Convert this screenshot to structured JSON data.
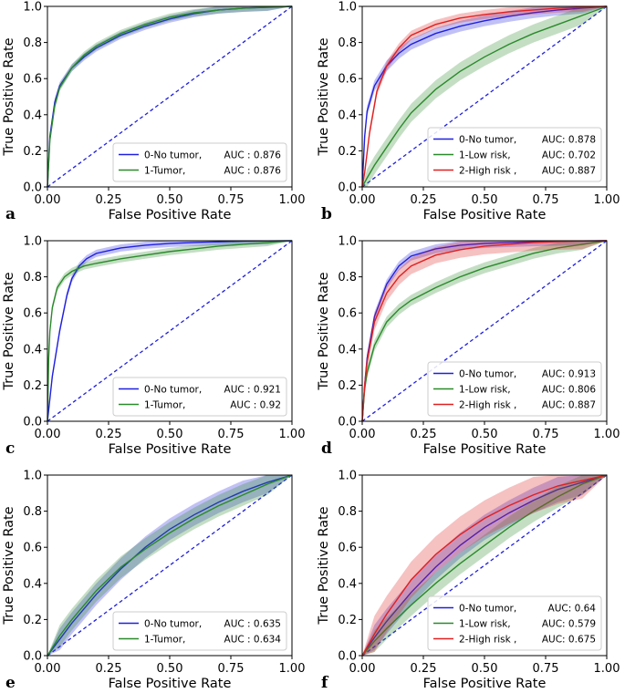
{
  "colors": {
    "blue": "#1f1fe0",
    "green": "#2a8a2a",
    "red": "#e02020",
    "diag": "#1f1fe0"
  },
  "chart_data": [
    {
      "type": "line",
      "panel": "a",
      "xlabel": "False Positive Rate",
      "ylabel": "True Positive Rate",
      "xlim": [
        0,
        1
      ],
      "ylim": [
        0,
        1
      ],
      "xticks": [
        "0.00",
        "0.25",
        "0.50",
        "0.75",
        "1.00"
      ],
      "yticks": [
        "0.0",
        "0.2",
        "0.4",
        "0.6",
        "0.8",
        "1.0"
      ],
      "legend_position": "lower-right",
      "series": [
        {
          "name": "0-No tumor,",
          "auc_label": "AUC : 0.876",
          "color": "blue",
          "x": [
            0,
            0.01,
            0.03,
            0.05,
            0.1,
            0.15,
            0.2,
            0.3,
            0.4,
            0.5,
            0.6,
            0.7,
            0.8,
            0.9,
            1.0
          ],
          "y": [
            0,
            0.28,
            0.47,
            0.56,
            0.66,
            0.72,
            0.77,
            0.84,
            0.89,
            0.93,
            0.96,
            0.98,
            0.99,
            0.995,
            1.0
          ],
          "band": 0.02
        },
        {
          "name": "1-Tumor,",
          "auc_label": "AUC : 0.876",
          "color": "green",
          "x": [
            0,
            0.01,
            0.03,
            0.05,
            0.1,
            0.15,
            0.2,
            0.3,
            0.4,
            0.5,
            0.6,
            0.7,
            0.8,
            0.9,
            1.0
          ],
          "y": [
            0,
            0.26,
            0.45,
            0.55,
            0.66,
            0.73,
            0.78,
            0.85,
            0.9,
            0.94,
            0.965,
            0.98,
            0.99,
            0.996,
            1.0
          ],
          "band": 0.02
        }
      ]
    },
    {
      "type": "line",
      "panel": "b",
      "xlabel": "False Positive Rate",
      "ylabel": "True Positive Rate",
      "xlim": [
        0,
        1
      ],
      "ylim": [
        0,
        1
      ],
      "xticks": [
        "0.00",
        "0.25",
        "0.50",
        "0.75",
        "1.00"
      ],
      "yticks": [
        "0.0",
        "0.2",
        "0.4",
        "0.6",
        "0.8",
        "1.0"
      ],
      "legend_position": "lower-right",
      "series": [
        {
          "name": "0-No tumor,",
          "auc_label": "AUC: 0.878",
          "color": "blue",
          "x": [
            0,
            0.01,
            0.02,
            0.05,
            0.1,
            0.15,
            0.2,
            0.3,
            0.4,
            0.5,
            0.6,
            0.7,
            0.8,
            0.9,
            1.0
          ],
          "y": [
            0,
            0.28,
            0.42,
            0.56,
            0.67,
            0.74,
            0.79,
            0.85,
            0.89,
            0.92,
            0.945,
            0.965,
            0.98,
            0.99,
            1.0
          ],
          "band": 0.03
        },
        {
          "name": "1-Low risk,",
          "auc_label": "AUC: 0.702",
          "color": "green",
          "x": [
            0,
            0.02,
            0.05,
            0.1,
            0.15,
            0.2,
            0.3,
            0.4,
            0.5,
            0.6,
            0.7,
            0.8,
            0.9,
            1.0
          ],
          "y": [
            0,
            0.05,
            0.12,
            0.22,
            0.32,
            0.41,
            0.54,
            0.64,
            0.72,
            0.79,
            0.85,
            0.9,
            0.95,
            1.0
          ],
          "band": 0.05
        },
        {
          "name": "2-High risk ,",
          "auc_label": "AUC: 0.887",
          "color": "red",
          "x": [
            0,
            0.01,
            0.03,
            0.06,
            0.1,
            0.15,
            0.2,
            0.3,
            0.4,
            0.5,
            0.6,
            0.7,
            0.8,
            0.9,
            1.0
          ],
          "y": [
            0,
            0.08,
            0.3,
            0.53,
            0.67,
            0.77,
            0.84,
            0.9,
            0.935,
            0.955,
            0.97,
            0.98,
            0.99,
            0.995,
            1.0
          ],
          "band": 0.025
        }
      ]
    },
    {
      "type": "line",
      "panel": "c",
      "xlabel": "False Positive Rate",
      "ylabel": "True Positive Rate",
      "xlim": [
        0,
        1
      ],
      "ylim": [
        0,
        1
      ],
      "xticks": [
        "0.00",
        "0.25",
        "0.50",
        "0.75",
        "1.00"
      ],
      "yticks": [
        "0.0",
        "0.2",
        "0.4",
        "0.6",
        "0.8",
        "1.0"
      ],
      "legend_position": "lower-right",
      "series": [
        {
          "name": "0-No tumor,",
          "auc_label": "AUC : 0.921",
          "color": "blue",
          "x": [
            0,
            0.02,
            0.05,
            0.08,
            0.1,
            0.13,
            0.16,
            0.2,
            0.3,
            0.4,
            0.5,
            0.6,
            0.7,
            0.8,
            0.9,
            1.0
          ],
          "y": [
            0,
            0.25,
            0.5,
            0.7,
            0.79,
            0.86,
            0.9,
            0.93,
            0.96,
            0.975,
            0.985,
            0.99,
            0.994,
            0.997,
            0.999,
            1.0
          ],
          "band": 0.02
        },
        {
          "name": "1-Tumor,",
          "auc_label": "AUC : 0.92",
          "color": "green",
          "x": [
            0,
            0.005,
            0.01,
            0.02,
            0.04,
            0.07,
            0.1,
            0.15,
            0.2,
            0.3,
            0.4,
            0.5,
            0.6,
            0.7,
            0.8,
            0.9,
            1.0
          ],
          "y": [
            0,
            0.35,
            0.5,
            0.63,
            0.74,
            0.8,
            0.83,
            0.86,
            0.875,
            0.9,
            0.92,
            0.94,
            0.955,
            0.97,
            0.98,
            0.99,
            1.0
          ],
          "band": 0.02
        }
      ]
    },
    {
      "type": "line",
      "panel": "d",
      "xlabel": "False Positive Rate",
      "ylabel": "True Positive Rate",
      "xlim": [
        0,
        1
      ],
      "ylim": [
        0,
        1
      ],
      "xticks": [
        "0.00",
        "0.25",
        "0.50",
        "0.75",
        "1.00"
      ],
      "yticks": [
        "0.0",
        "0.2",
        "0.4",
        "0.6",
        "0.8",
        "1.0"
      ],
      "legend_position": "lower-right",
      "series": [
        {
          "name": "0-No tumor,",
          "auc_label": "AUC: 0.913",
          "color": "blue",
          "x": [
            0,
            0.01,
            0.02,
            0.05,
            0.1,
            0.15,
            0.2,
            0.3,
            0.4,
            0.5,
            0.6,
            0.7,
            0.8,
            0.9,
            1.0
          ],
          "y": [
            0,
            0.2,
            0.35,
            0.58,
            0.76,
            0.86,
            0.915,
            0.955,
            0.975,
            0.985,
            0.99,
            0.994,
            0.997,
            0.999,
            1.0
          ],
          "band": 0.025
        },
        {
          "name": "1-Low risk,",
          "auc_label": "AUC: 0.806",
          "color": "green",
          "x": [
            0,
            0.01,
            0.02,
            0.05,
            0.1,
            0.15,
            0.2,
            0.3,
            0.4,
            0.5,
            0.6,
            0.7,
            0.8,
            0.9,
            1.0
          ],
          "y": [
            0,
            0.18,
            0.27,
            0.42,
            0.55,
            0.62,
            0.67,
            0.74,
            0.8,
            0.85,
            0.89,
            0.93,
            0.96,
            0.98,
            1.0
          ],
          "band": 0.03
        },
        {
          "name": "2-High risk ,",
          "auc_label": "AUC: 0.887",
          "color": "red",
          "x": [
            0,
            0.01,
            0.02,
            0.05,
            0.1,
            0.15,
            0.2,
            0.3,
            0.4,
            0.5,
            0.6,
            0.7,
            0.8,
            0.9,
            1.0
          ],
          "y": [
            0,
            0.2,
            0.33,
            0.55,
            0.71,
            0.8,
            0.86,
            0.92,
            0.95,
            0.97,
            0.98,
            0.99,
            0.995,
            0.998,
            1.0
          ],
          "band": 0.045
        }
      ]
    },
    {
      "type": "line",
      "panel": "e",
      "xlabel": "False Positive Rate",
      "ylabel": "True Positive Rate",
      "xlim": [
        0,
        1
      ],
      "ylim": [
        0,
        1
      ],
      "xticks": [
        "0.00",
        "0.25",
        "0.50",
        "0.75",
        "1.00"
      ],
      "yticks": [
        "0.0",
        "0.2",
        "0.4",
        "0.6",
        "0.8",
        "1.0"
      ],
      "legend_position": "lower-right",
      "series": [
        {
          "name": "0-No tumor,",
          "auc_label": "AUC : 0.635",
          "color": "blue",
          "x": [
            0,
            0.05,
            0.1,
            0.2,
            0.3,
            0.4,
            0.5,
            0.6,
            0.7,
            0.8,
            0.9,
            1.0
          ],
          "y": [
            0,
            0.09,
            0.18,
            0.34,
            0.48,
            0.6,
            0.7,
            0.78,
            0.85,
            0.91,
            0.96,
            1.0
          ],
          "band": 0.06
        },
        {
          "name": "1-Tumor,",
          "auc_label": "AUC : 0.634",
          "color": "green",
          "x": [
            0,
            0.05,
            0.1,
            0.2,
            0.3,
            0.4,
            0.5,
            0.6,
            0.7,
            0.8,
            0.9,
            1.0
          ],
          "y": [
            0,
            0.11,
            0.2,
            0.36,
            0.49,
            0.59,
            0.68,
            0.76,
            0.83,
            0.89,
            0.95,
            1.0
          ],
          "band": 0.06
        }
      ]
    },
    {
      "type": "line",
      "panel": "f",
      "xlabel": "False Positive Rate",
      "ylabel": "True Positive Rate",
      "xlim": [
        0,
        1
      ],
      "ylim": [
        0,
        1
      ],
      "xticks": [
        "0.00",
        "0.25",
        "0.50",
        "0.75",
        "1.00"
      ],
      "yticks": [
        "0.0",
        "0.2",
        "0.4",
        "0.6",
        "0.8",
        "1.0"
      ],
      "legend_position": "lower-right",
      "series": [
        {
          "name": "0-No tumor,",
          "auc_label": "AUC: 0.64",
          "color": "blue",
          "x": [
            0,
            0.05,
            0.1,
            0.2,
            0.3,
            0.4,
            0.5,
            0.6,
            0.7,
            0.8,
            0.9,
            1.0
          ],
          "y": [
            0,
            0.1,
            0.19,
            0.35,
            0.49,
            0.61,
            0.71,
            0.79,
            0.86,
            0.92,
            0.96,
            1.0
          ],
          "band": 0.07
        },
        {
          "name": "1-Low risk,",
          "auc_label": "AUC: 0.579",
          "color": "green",
          "x": [
            0,
            0.05,
            0.1,
            0.2,
            0.3,
            0.4,
            0.5,
            0.6,
            0.7,
            0.8,
            0.9,
            1.0
          ],
          "y": [
            0,
            0.08,
            0.15,
            0.28,
            0.4,
            0.51,
            0.61,
            0.71,
            0.8,
            0.88,
            0.95,
            1.0
          ],
          "band": 0.06
        },
        {
          "name": "2-High risk ,",
          "auc_label": "AUC: 0.675",
          "color": "red",
          "x": [
            0,
            0.05,
            0.1,
            0.2,
            0.3,
            0.4,
            0.5,
            0.6,
            0.7,
            0.8,
            0.9,
            1.0
          ],
          "y": [
            0,
            0.12,
            0.23,
            0.42,
            0.56,
            0.67,
            0.76,
            0.83,
            0.89,
            0.94,
            0.97,
            1.0
          ],
          "band": 0.1
        }
      ]
    }
  ]
}
